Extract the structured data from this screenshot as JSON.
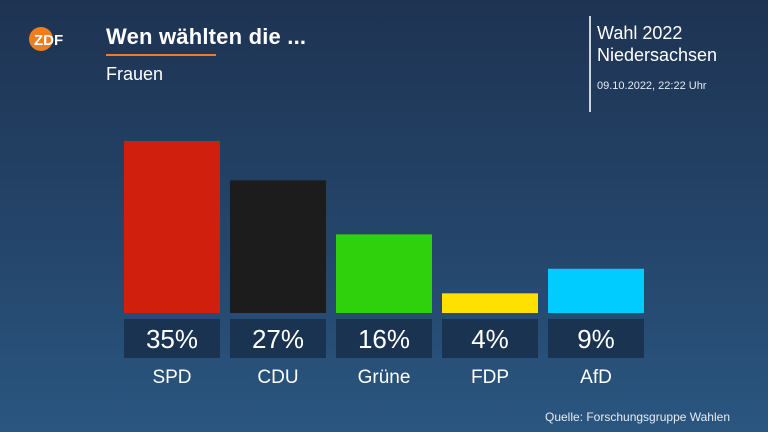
{
  "header": {
    "logo_text": "ZDF",
    "title": "Wen wählten die ...",
    "subtitle": "Frauen"
  },
  "info": {
    "line1": "Wahl 2022",
    "line2": "Niedersachsen",
    "date": "09.10.2022, 22:22 Uhr"
  },
  "source": "Quelle: Forschungsgruppe Wahlen",
  "colors": {
    "accent": "#f07d1e",
    "SPD": "#d01f0c",
    "CDU": "#1c1c1c",
    "Grüne": "#2fd10d",
    "FDP": "#ffe100",
    "AfD": "#00ccff"
  },
  "chart_data": {
    "type": "bar",
    "categories": [
      "SPD",
      "CDU",
      "Grüne",
      "FDP",
      "AfD"
    ],
    "values": [
      35,
      27,
      16,
      4,
      9
    ],
    "value_labels": [
      "35%",
      "27%",
      "16%",
      "4%",
      "9%"
    ],
    "colors": [
      "#d01f0c",
      "#1c1c1c",
      "#2fd10d",
      "#ffe100",
      "#00ccff"
    ],
    "ylim": [
      0,
      35
    ],
    "grid": false,
    "legend": "none"
  }
}
